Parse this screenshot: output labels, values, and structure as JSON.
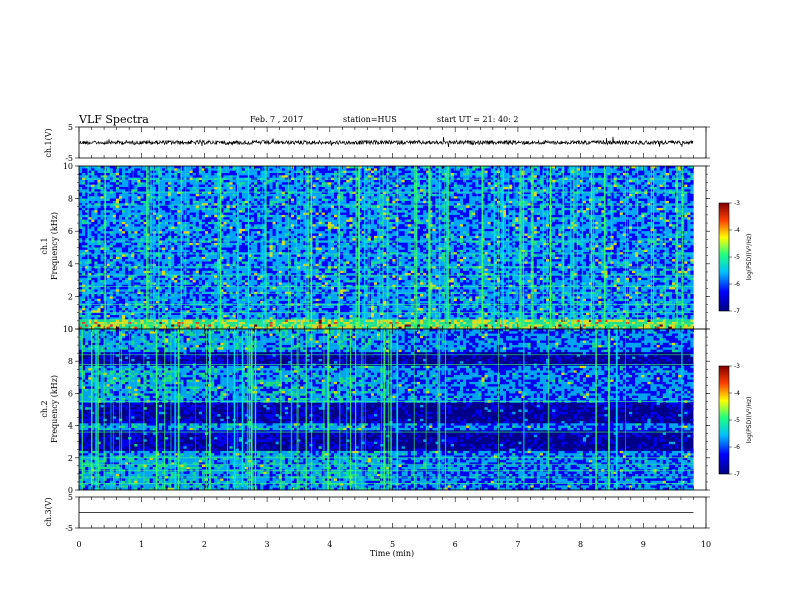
{
  "header": {
    "title": "VLF Spectra",
    "date": "Feb. 7 , 2017",
    "station": "station=HUS",
    "start": "start  UT =   21: 40: 2"
  },
  "colors": {
    "waveform": "#000000",
    "colormap": [
      "#00007f",
      "#0000ff",
      "#00c0ff",
      "#20ff80",
      "#ffff00",
      "#ff4000",
      "#800000"
    ]
  },
  "chart_data": [
    {
      "type": "line",
      "name": "ch1-waveform",
      "ylabel": "ch.1(V)",
      "ylim": [
        -5,
        5
      ],
      "yticks": [
        "5",
        "-5"
      ],
      "x": [
        0,
        1,
        2,
        3,
        4,
        5,
        6,
        7,
        8,
        9,
        9.8
      ],
      "values": [
        0,
        0,
        0,
        0,
        0,
        0,
        0,
        0,
        0,
        0,
        0
      ]
    },
    {
      "type": "heatmap",
      "name": "ch1-spectrogram",
      "ylabel_top": "ch.1",
      "ylabel": "Frequency (kHz)",
      "ylim": [
        0,
        10
      ],
      "xlim": [
        0,
        9.8
      ],
      "yticks": [
        "0",
        "2",
        "4",
        "6",
        "8",
        "10"
      ],
      "colorbar": {
        "label": "log(PSD)(V²/Hz)",
        "range": [
          -7,
          -3
        ],
        "ticks": [
          "-3",
          "-4",
          "-5",
          "-6",
          "-7"
        ]
      }
    },
    {
      "type": "heatmap",
      "name": "ch2-spectrogram",
      "ylabel_top": "ch.2",
      "ylabel": "Frequency (kHz)",
      "ylim": [
        0,
        10
      ],
      "xlim": [
        0,
        9.8
      ],
      "yticks": [
        "0",
        "2",
        "4",
        "6",
        "8",
        "10"
      ],
      "colorbar": {
        "label": "log(PSD)(V²/Hz)",
        "range": [
          -7,
          -3
        ],
        "ticks": [
          "-3",
          "-4",
          "-5",
          "-6",
          "-7"
        ]
      }
    },
    {
      "type": "line",
      "name": "ch3-waveform",
      "ylabel": "ch.3(V)",
      "ylim": [
        -5,
        5
      ],
      "yticks": [
        "5",
        "-5"
      ],
      "x": [
        0,
        9.8
      ],
      "values": [
        0,
        0
      ]
    }
  ],
  "xaxis": {
    "label": "Time  (min)",
    "range": [
      0,
      10
    ],
    "ticks": [
      "0",
      "1",
      "2",
      "3",
      "4",
      "5",
      "6",
      "7",
      "8",
      "9",
      "10"
    ]
  }
}
